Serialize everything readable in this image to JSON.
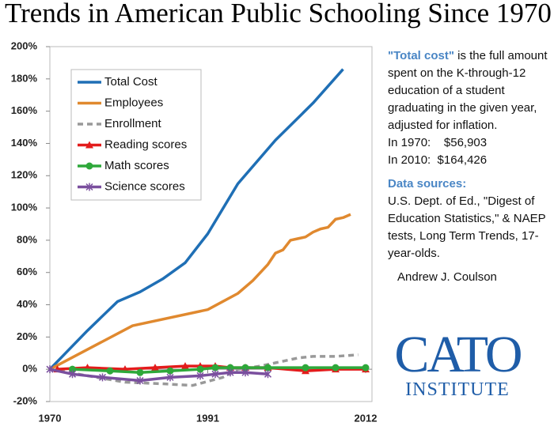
{
  "chart_data": {
    "type": "line",
    "title": "Trends in American Public Schooling Since 1970",
    "xlim": [
      1970,
      2012
    ],
    "xticks": [
      1970,
      1991,
      2012
    ],
    "ylim": [
      -20,
      200
    ],
    "yticks": [
      {
        "value": -20,
        "label": "-20%"
      },
      {
        "value": 0,
        "label": "0%"
      },
      {
        "value": 20,
        "label": "20%"
      },
      {
        "value": 40,
        "label": "40%"
      },
      {
        "value": 60,
        "label": "60%"
      },
      {
        "value": 80,
        "label": "80%"
      },
      {
        "value": 100,
        "label": "100%"
      },
      {
        "value": 120,
        "label": "120%"
      },
      {
        "value": 140,
        "label": "140%"
      },
      {
        "value": 160,
        "label": "160%"
      },
      {
        "value": 180,
        "label": "180%"
      },
      {
        "value": 200,
        "label": "200%"
      }
    ],
    "series": [
      {
        "name": "Total Cost",
        "color": "#1f6fb5",
        "line_style": "solid",
        "marker": "none",
        "x": [
          1970,
          1975,
          1979,
          1982,
          1985,
          1988,
          1991,
          1995,
          2000,
          2005,
          2009
        ],
        "values": [
          0,
          24,
          42,
          48,
          56,
          66,
          84,
          115,
          142,
          165,
          186
        ]
      },
      {
        "name": "Employees",
        "color": "#e0892f",
        "line_style": "solid",
        "marker": "none",
        "x": [
          1970,
          1981,
          1991,
          1995,
          1997,
          1999,
          2000,
          2001,
          2002,
          2003,
          2004,
          2005,
          2006,
          2007,
          2008,
          2009,
          2010
        ],
        "values": [
          0,
          27,
          37,
          47,
          55,
          65,
          72,
          74,
          80,
          81,
          82,
          85,
          87,
          88,
          93,
          94,
          96
        ]
      },
      {
        "name": "Enrollment",
        "color": "#999999",
        "line_style": "dashed",
        "marker": "none",
        "x": [
          1970,
          1975,
          1980,
          1985,
          1989,
          1993,
          1995,
          1998,
          2000,
          2003,
          2005,
          2008,
          2011
        ],
        "values": [
          0,
          -4,
          -8,
          -9,
          -10,
          -5,
          0,
          2,
          4,
          7,
          8,
          8,
          9
        ]
      },
      {
        "name": "Reading scores",
        "color": "#e31c1c",
        "line_style": "solid",
        "marker": "triangle",
        "x": [
          1971,
          1975,
          1980,
          1984,
          1988,
          1990,
          1992,
          1994,
          1996,
          1999,
          2004,
          2008,
          2012
        ],
        "values": [
          0,
          1,
          0,
          1,
          2,
          2,
          2,
          1,
          1,
          1,
          -1,
          0,
          0
        ]
      },
      {
        "name": "Math scores",
        "color": "#2ea83a",
        "line_style": "solid",
        "marker": "circle",
        "x": [
          1973,
          1978,
          1982,
          1986,
          1990,
          1992,
          1994,
          1996,
          1999,
          2004,
          2008,
          2012
        ],
        "values": [
          0,
          -1,
          -2,
          -1,
          0,
          1,
          1,
          1,
          1,
          1,
          1,
          1
        ]
      },
      {
        "name": "Science scores",
        "color": "#7a4f9e",
        "line_style": "solid",
        "marker": "star",
        "x": [
          1970,
          1973,
          1977,
          1982,
          1986,
          1990,
          1992,
          1994,
          1996,
          1999
        ],
        "values": [
          0,
          -3,
          -5,
          -7,
          -5,
          -4,
          -3,
          -2,
          -2,
          -3
        ]
      }
    ],
    "legend": "upper left",
    "annotations": {
      "note_term": "\"Total cost\"",
      "note_text": "is the full amount spent on the K-through-12 education of a student graduating in the given year, adjusted for inflation.",
      "cost_1970": "In 1970:    $56,903",
      "cost_2010": "In 2010:  $164,426",
      "sources_heading": "Data sources:",
      "sources_text": "U.S. Dept. of Ed., \"Digest of Education Statistics,\"  & NAEP tests, Long Term Trends, 17-year-olds.",
      "author": "Andrew J. Coulson",
      "logo_main": "CATO",
      "logo_sub": "INSTITUTE"
    }
  }
}
